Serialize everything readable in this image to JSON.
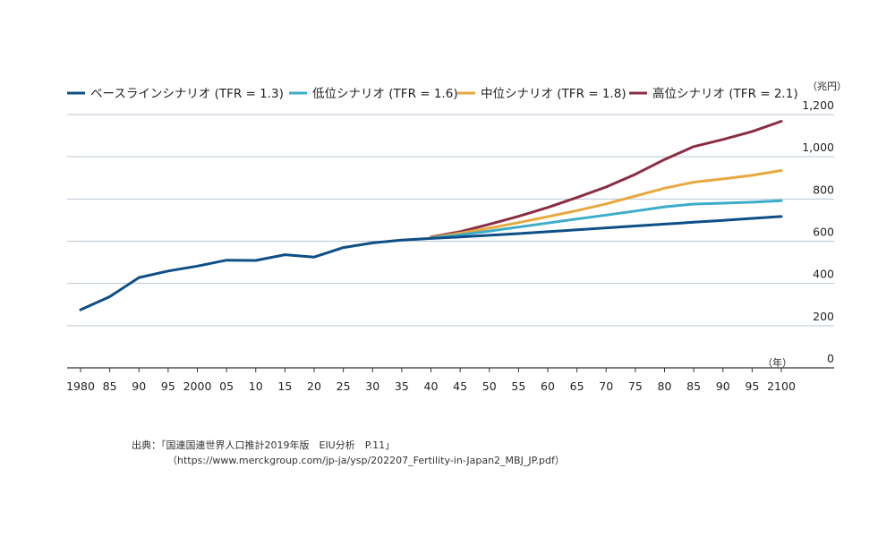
{
  "chart_data": {
    "type": "line",
    "y_unit": "（兆円）",
    "x_unit": "（年）",
    "ylim": [
      0,
      1200
    ],
    "yticks": [
      0,
      200,
      400,
      600,
      800,
      1000,
      1200
    ],
    "ytick_labels": [
      "0",
      "200",
      "400",
      "600",
      "800",
      "1,000",
      "1,200"
    ],
    "xlim": [
      1980,
      2100
    ],
    "xticks": [
      1980,
      1985,
      1990,
      1995,
      2000,
      2005,
      2010,
      2015,
      2020,
      2025,
      2030,
      2035,
      2040,
      2045,
      2050,
      2055,
      2060,
      2065,
      2070,
      2075,
      2080,
      2085,
      2090,
      2095,
      2100
    ],
    "xtick_labels": [
      "1980",
      "85",
      "90",
      "95",
      "2000",
      "05",
      "10",
      "15",
      "20",
      "25",
      "30",
      "35",
      "40",
      "45",
      "50",
      "55",
      "60",
      "65",
      "70",
      "75",
      "80",
      "85",
      "90",
      "95",
      "2100"
    ],
    "grid": true,
    "legend_position": "top",
    "series": [
      {
        "name": "ベースラインシナリオ (TFR = 1.3)",
        "color": "#0d4f86",
        "x": [
          1980,
          1985,
          1990,
          1995,
          2000,
          2005,
          2010,
          2015,
          2020,
          2025,
          2030,
          2035,
          2040,
          2045,
          2050,
          2055,
          2060,
          2065,
          2070,
          2075,
          2080,
          2085,
          2090,
          2095,
          2100
        ],
        "values": [
          275,
          337,
          428,
          459,
          482,
          510,
          509,
          536,
          525,
          570,
          592,
          605,
          613,
          620,
          628,
          636,
          645,
          654,
          663,
          672,
          681,
          690,
          699,
          708,
          717
        ]
      },
      {
        "name": "低位シナリオ (TFR = 1.6)",
        "color": "#3cadc9",
        "x": [
          2040,
          2045,
          2050,
          2055,
          2060,
          2065,
          2070,
          2075,
          2080,
          2085,
          2090,
          2095,
          2100
        ],
        "values": [
          615,
          630,
          648,
          667,
          686,
          705,
          724,
          743,
          763,
          776,
          780,
          785,
          792
        ]
      },
      {
        "name": "中位シナリオ (TFR = 1.8)",
        "color": "#e8a840",
        "x": [
          2040,
          2045,
          2050,
          2055,
          2060,
          2065,
          2070,
          2075,
          2080,
          2085,
          2090,
          2095,
          2100
        ],
        "values": [
          617,
          638,
          662,
          688,
          716,
          745,
          777,
          814,
          851,
          880,
          895,
          912,
          935
        ]
      },
      {
        "name": "高位シナリオ (TFR = 2.1)",
        "color": "#8a2d42",
        "x": [
          2040,
          2045,
          2050,
          2055,
          2060,
          2065,
          2070,
          2075,
          2080,
          2085,
          2090,
          2095,
          2100
        ],
        "values": [
          620,
          645,
          680,
          718,
          760,
          807,
          857,
          917,
          987,
          1048,
          1082,
          1120,
          1168
        ]
      }
    ]
  },
  "source": {
    "line1": "出典：「国連国連世界人口推計2019年版　EIU分析　P.11」",
    "line2": "（https://www.merckgroup.com/jp-ja/ysp/202207_Fertility-in-Japan2_MBJ_JP.pdf）"
  }
}
